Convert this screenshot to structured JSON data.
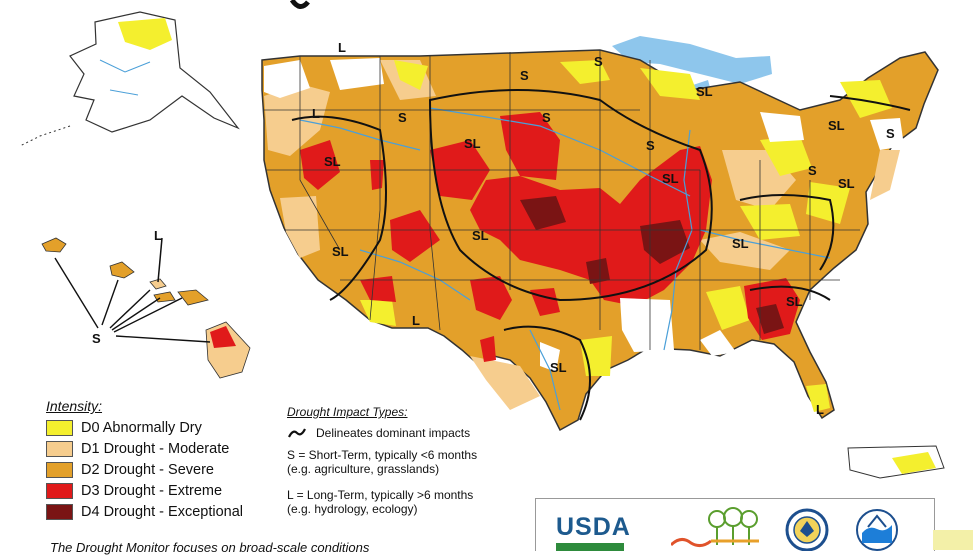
{
  "map": {
    "region_labels": [
      "L",
      "S",
      "S",
      "SL",
      "L",
      "S",
      "S",
      "SL",
      "SL",
      "S",
      "S",
      "SL",
      "S",
      "SL",
      "SL",
      "SL",
      "SL",
      "SL",
      "SL",
      "SL",
      "L",
      "L",
      "L",
      "S"
    ],
    "colors": {
      "D0": "#f4ef2e",
      "D1": "#f6cd8e",
      "D2": "#e3a02a",
      "D3": "#e01a1a",
      "D4": "#7a1414",
      "water": "#8ec6ec",
      "rivers": "#4a9fd8",
      "none": "#ffffff"
    }
  },
  "intensity_legend": {
    "title": "Intensity:",
    "items": [
      {
        "code": "D0",
        "label": "D0 Abnormally Dry",
        "color": "#f4ef2e"
      },
      {
        "code": "D1",
        "label": "D1 Drought - Moderate",
        "color": "#f6cd8e"
      },
      {
        "code": "D2",
        "label": "D2 Drought - Severe",
        "color": "#e3a02a"
      },
      {
        "code": "D3",
        "label": "D3 Drought - Extreme",
        "color": "#e01a1a"
      },
      {
        "code": "D4",
        "label": "D4 Drought - Exceptional",
        "color": "#7a1414"
      }
    ]
  },
  "impact_legend": {
    "title": "Drought Impact Types:",
    "delineates": "Delineates dominant impacts",
    "short_term_1": "S = Short-Term, typically <6 months",
    "short_term_2": "(e.g. agriculture, grasslands)",
    "long_term_1": "L = Long-Term, typically >6 months",
    "long_term_2": "(e.g. hydrology, ecology)"
  },
  "footer": {
    "text": "The Drought Monitor focuses on broad-scale conditions"
  },
  "logos": {
    "usda": "USDA",
    "icons": [
      "usda-logo-icon",
      "ndmc-logo-icon",
      "commerce-seal-icon",
      "noaa-logo-icon"
    ]
  }
}
